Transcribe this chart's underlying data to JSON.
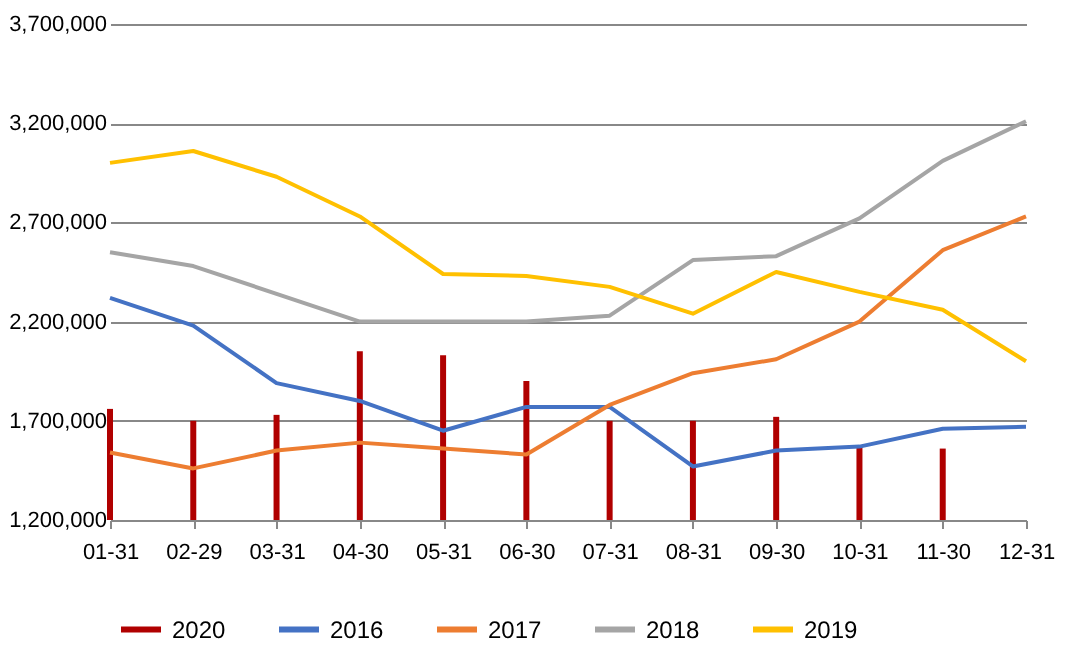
{
  "chart_data": {
    "type": "line",
    "categories": [
      "01-31",
      "02-29",
      "03-31",
      "04-30",
      "05-31",
      "06-30",
      "07-31",
      "08-31",
      "09-30",
      "10-31",
      "11-30",
      "12-31"
    ],
    "series": [
      {
        "name": "2020",
        "type": "bar",
        "color": "#b00000",
        "values": [
          1760000,
          1700000,
          1730000,
          2050000,
          2030000,
          1900000,
          1700000,
          1700000,
          1720000,
          1570000,
          1560000,
          null
        ]
      },
      {
        "name": "2016",
        "color": "#4472c4",
        "values": [
          2320000,
          2180000,
          1890000,
          1800000,
          1650000,
          1770000,
          1770000,
          1470000,
          1550000,
          1570000,
          1660000,
          1670000
        ]
      },
      {
        "name": "2017",
        "color": "#ed7d31",
        "values": [
          1540000,
          1460000,
          1550000,
          1590000,
          1560000,
          1530000,
          1780000,
          1940000,
          2010000,
          2200000,
          2560000,
          2730000
        ]
      },
      {
        "name": "2018",
        "color": "#a5a5a5",
        "values": [
          2550000,
          2480000,
          2340000,
          2200000,
          2200000,
          2200000,
          2230000,
          2510000,
          2530000,
          2720000,
          3010000,
          3210000
        ]
      },
      {
        "name": "2019",
        "color": "#ffc000",
        "values": [
          3000000,
          3060000,
          2930000,
          2730000,
          2440000,
          2430000,
          2375000,
          2240000,
          2450000,
          2350000,
          2260000,
          2000000
        ]
      }
    ],
    "ylim": [
      1200000,
      3700000
    ],
    "yticks": [
      {
        "value": 1200000,
        "label": "1,200,000"
      },
      {
        "value": 1700000,
        "label": "1,700,000"
      },
      {
        "value": 2200000,
        "label": "2,200,000"
      },
      {
        "value": 2700000,
        "label": "2,700,000"
      },
      {
        "value": 3200000,
        "label": "3,200,000"
      },
      {
        "value": 3700000,
        "label": "3,700,000"
      }
    ],
    "grid": "y",
    "legend": "bottom",
    "marker": "none",
    "line_style": "solid"
  }
}
